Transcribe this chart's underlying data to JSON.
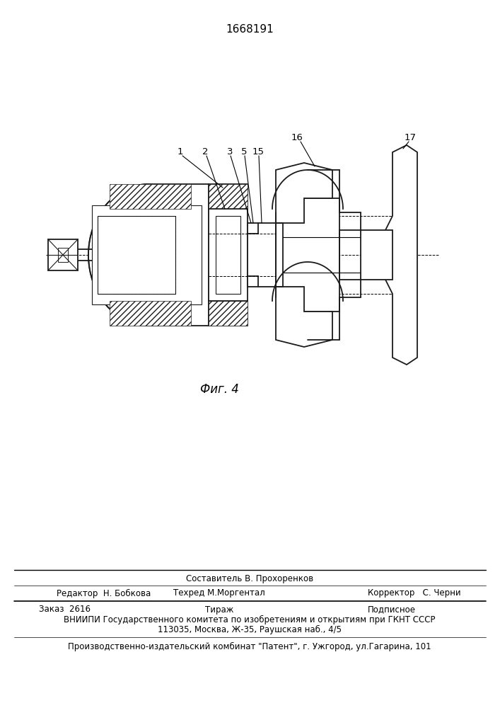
{
  "patent_number": "1668191",
  "fig_label": "Фиг. 4",
  "top_line1": "Составитель В. Прохоренков",
  "editor": "Редактор  Н. Бобкова",
  "techred": "Техред М.Моргентал",
  "corrector": "Корректор   С. Черни",
  "zakaz": "Заказ  2616",
  "tirazh": "Тираж",
  "podpisnoe": "Подписное",
  "vniip": "ВНИИПИ Государственного комитета по изобретениям и открытиям при ГКНТ СССР",
  "addr": "113035, Москва, Ж-35, Раушская наб., 4/5",
  "publisher": "Производственно-издательский комбинат \"Патент\", г. Ужгород, ул.Гагарина, 101",
  "bg_color": "#ffffff",
  "lc": "#1a1a1a"
}
